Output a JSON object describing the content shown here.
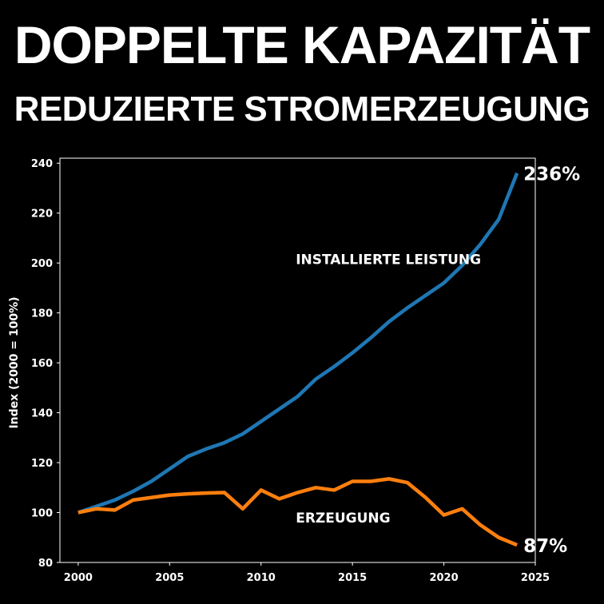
{
  "title": "DOPPELTE KAPAZITÄT",
  "subtitle": "REDUZIERTE STROMERZEUGUNG",
  "colors": {
    "background": "#000000",
    "capacity": "#1f77b4",
    "generation": "#ff7f0e",
    "text": "#ffffff"
  },
  "chart_data": {
    "type": "line",
    "ylabel": "Index (2000 = 100%)",
    "xlabel": "",
    "xlim": [
      1999,
      2025
    ],
    "ylim": [
      80,
      242
    ],
    "xticks": [
      "2000",
      "2005",
      "2010",
      "2015",
      "2020",
      "2025"
    ],
    "yticks": [
      "80",
      "100",
      "120",
      "140",
      "160",
      "180",
      "200",
      "220",
      "240"
    ],
    "grid": false,
    "x": [
      2000,
      2001,
      2002,
      2003,
      2004,
      2005,
      2006,
      2007,
      2008,
      2009,
      2010,
      2011,
      2012,
      2013,
      2014,
      2015,
      2016,
      2017,
      2018,
      2019,
      2020,
      2021,
      2022,
      2023,
      2024
    ],
    "series": [
      {
        "name": "INSTALLIERTE LEISTUNG",
        "color": "#1f77b4",
        "values": [
          100,
          102.5,
          105,
          108.5,
          112.5,
          117.5,
          122.5,
          125.5,
          128,
          131.5,
          136.5,
          141.5,
          146.5,
          153.5,
          158.5,
          164,
          170,
          176.5,
          182,
          187,
          192,
          199,
          207.5,
          217.5,
          236
        ],
        "end_label": "236%"
      },
      {
        "name": "ERZEUGUNG",
        "color": "#ff7f0e",
        "values": [
          100,
          101.5,
          101,
          105,
          106,
          107,
          107.5,
          107.8,
          108,
          101.5,
          109,
          105.5,
          108,
          110,
          109,
          112.5,
          112.5,
          113.5,
          112,
          106,
          99,
          101.5,
          95,
          90,
          87
        ],
        "end_label": "87%"
      }
    ]
  }
}
